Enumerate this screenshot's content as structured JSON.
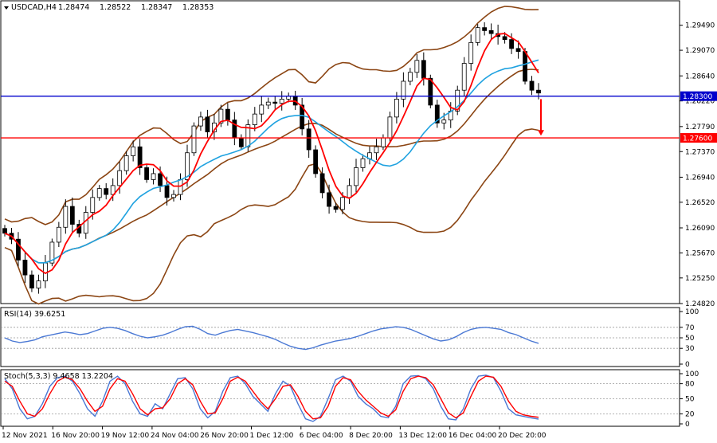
{
  "chart_data": [
    {
      "type": "candlestick",
      "title": "USDCAD,H4",
      "ohlc_header": [
        "1.28474",
        "1.28522",
        "1.28347",
        "1.28353"
      ],
      "yaxis_ticks": [
        "1.29490",
        "1.29070",
        "1.28640",
        "1.28220",
        "1.27790",
        "1.27370",
        "1.26940",
        "1.26520",
        "1.26090",
        "1.25670",
        "1.25250",
        "1.24820"
      ],
      "ylim": [
        1.2482,
        1.299
      ],
      "xaxis_ticks": [
        "12 Nov 2021",
        "16 Nov 20:00",
        "19 Nov 12:00",
        "24 Nov 04:00",
        "26 Nov 20:00",
        "1 Dec 12:00",
        "6 Dec 04:00",
        "8 Dec 20:00",
        "13 Dec 12:00",
        "16 Dec 04:00",
        "20 Dec 20:00"
      ],
      "horizontal_lines": [
        {
          "label": "1.28300",
          "value": 1.283,
          "color": "#0000cc"
        },
        {
          "label": "1.27600",
          "value": 1.276,
          "color": "#ff0000"
        }
      ],
      "close_path": [
        1.26,
        1.259,
        1.2555,
        1.253,
        1.2508,
        1.252,
        1.255,
        1.2585,
        1.261,
        1.2645,
        1.2615,
        1.26,
        1.2635,
        1.266,
        1.2675,
        1.2665,
        1.268,
        1.2705,
        1.273,
        1.2745,
        1.271,
        1.269,
        1.27,
        1.268,
        1.266,
        1.2665,
        1.269,
        1.2735,
        1.278,
        1.2795,
        1.277,
        1.2785,
        1.2808,
        1.279,
        1.276,
        1.2745,
        1.2782,
        1.28,
        1.2815,
        1.282,
        1.2818,
        1.2825,
        1.283,
        1.2815,
        1.2775,
        1.274,
        1.27,
        1.2668,
        1.2645,
        1.264,
        1.266,
        1.268,
        1.271,
        1.2725,
        1.2735,
        1.2745,
        1.276,
        1.2795,
        1.2825,
        1.2855,
        1.287,
        1.289,
        1.286,
        1.2815,
        1.2785,
        1.279,
        1.2805,
        1.284,
        1.2885,
        1.292,
        1.2945,
        1.294,
        1.2935,
        1.293,
        1.2925,
        1.291,
        1.2905,
        1.2855,
        1.284,
        1.28353
      ],
      "arrow": {
        "from": 1.2825,
        "to": 1.2765,
        "color": "#ff0000",
        "direction": "down"
      },
      "indicators": {
        "fast_ma": {
          "color": "#ff0000",
          "period": 5
        },
        "slow_ma": {
          "color": "#1fa2e0",
          "period": 14
        },
        "bollinger": {
          "color": "#8b4513",
          "period": 20
        }
      }
    },
    {
      "type": "line",
      "title": "RSI(14) 39.6251",
      "ylim": [
        0,
        100
      ],
      "yaxis_ticks": [
        "100",
        "70",
        "50",
        "30",
        "0"
      ],
      "levels": [
        70,
        50,
        30
      ],
      "series": [
        {
          "color": "#4a78d4",
          "values": [
            50,
            44,
            41,
            43,
            46,
            52,
            55,
            58,
            61,
            59,
            56,
            58,
            63,
            68,
            70,
            68,
            64,
            58,
            53,
            50,
            52,
            55,
            60,
            66,
            71,
            72,
            66,
            58,
            55,
            60,
            64,
            66,
            63,
            60,
            56,
            52,
            47,
            40,
            34,
            30,
            28,
            31,
            36,
            40,
            44,
            46,
            49,
            53,
            58,
            63,
            67,
            69,
            71,
            70,
            66,
            60,
            54,
            48,
            44,
            46,
            52,
            60,
            66,
            69,
            70,
            68,
            66,
            60,
            56,
            50,
            44,
            39.6
          ]
        }
      ]
    },
    {
      "type": "line",
      "title": "Stoch(5,3,3) 9.4658 13.2204",
      "ylim": [
        0,
        100
      ],
      "yaxis_ticks": [
        "100",
        "80",
        "50",
        "20",
        "0"
      ],
      "levels": [
        80,
        50,
        20
      ],
      "series": [
        {
          "color": "#4a78d4",
          "values": [
            90,
            70,
            30,
            10,
            15,
            40,
            75,
            92,
            95,
            85,
            60,
            30,
            15,
            45,
            85,
            95,
            80,
            45,
            20,
            15,
            40,
            30,
            60,
            90,
            92,
            70,
            30,
            12,
            25,
            65,
            92,
            95,
            80,
            55,
            40,
            25,
            60,
            85,
            75,
            40,
            10,
            5,
            15,
            50,
            88,
            95,
            85,
            55,
            40,
            30,
            15,
            12,
            35,
            80,
            95,
            96,
            90,
            70,
            35,
            10,
            8,
            30,
            70,
            95,
            97,
            92,
            65,
            30,
            18,
            15,
            12,
            9.5
          ]
        },
        {
          "color": "#ff0000",
          "values": [
            85,
            75,
            45,
            20,
            15,
            30,
            60,
            85,
            93,
            88,
            70,
            45,
            25,
            35,
            70,
            90,
            85,
            60,
            30,
            18,
            30,
            32,
            50,
            80,
            90,
            78,
            45,
            20,
            22,
            50,
            85,
            93,
            85,
            65,
            45,
            30,
            50,
            75,
            78,
            55,
            25,
            10,
            12,
            35,
            75,
            92,
            88,
            65,
            48,
            35,
            22,
            15,
            28,
            65,
            90,
            95,
            92,
            78,
            50,
            22,
            12,
            22,
            55,
            85,
            95,
            93,
            75,
            45,
            25,
            18,
            15,
            13.2
          ]
        }
      ]
    }
  ]
}
